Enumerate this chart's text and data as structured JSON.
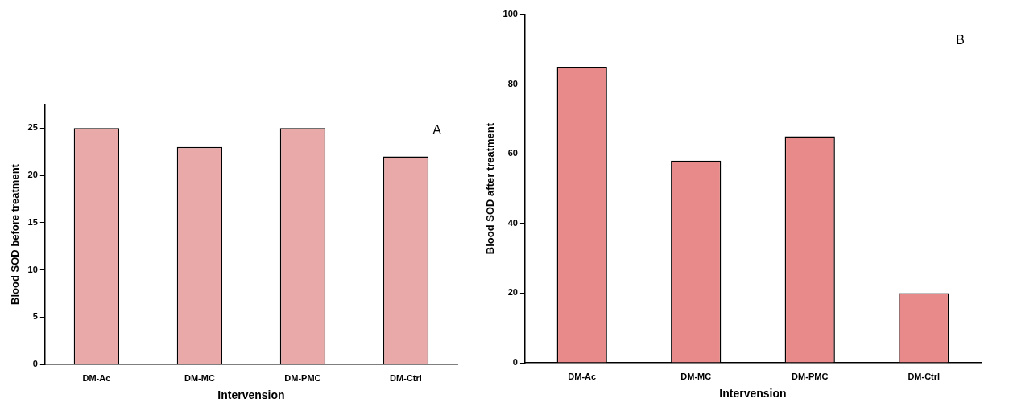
{
  "chart_data": [
    {
      "type": "bar",
      "xlabel": "Intervension",
      "ylabel": "Blood SOD before treatment",
      "categories": [
        "DM-Ac",
        "DM-MC",
        "DM-PMC",
        "DM-Ctrl"
      ],
      "values": [
        25,
        23,
        25,
        22
      ],
      "color": "#e9a9a9",
      "ylim": [
        0,
        27.5
      ],
      "yticks": [
        0,
        5,
        10,
        15,
        20,
        25
      ],
      "annotations": [
        "A"
      ]
    },
    {
      "type": "bar",
      "xlabel": "Intervension",
      "ylabel": "Blood SOD after treatment",
      "categories": [
        "DM-Ac",
        "DM-MC",
        "DM-PMC",
        "DM-Ctrl"
      ],
      "values": [
        85,
        58,
        65,
        20
      ],
      "color": "#e98a8a",
      "ylim": [
        0,
        100
      ],
      "yticks": [
        0,
        20,
        40,
        60,
        80,
        100
      ],
      "annotations": [
        "B"
      ]
    }
  ]
}
